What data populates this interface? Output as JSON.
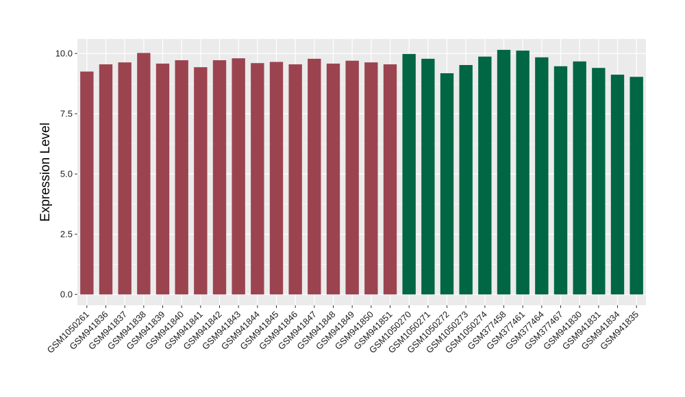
{
  "chart_data": {
    "type": "bar",
    "title": "",
    "xlabel": "",
    "ylabel": "Expression Level",
    "ylim": [
      -0.45,
      10.6
    ],
    "yticks": [
      0.0,
      2.5,
      5.0,
      7.5,
      10.0
    ],
    "ytick_labels": [
      "0.0",
      "2.5",
      "5.0",
      "7.5",
      "10.0"
    ],
    "grid": true,
    "legend": "none",
    "background_color": "#ebebeb",
    "gridline_color": "#ffffff",
    "categories": [
      "GSM1050261",
      "GSM941836",
      "GSM941837",
      "GSM941838",
      "GSM941839",
      "GSM941840",
      "GSM941841",
      "GSM941842",
      "GSM941843",
      "GSM941844",
      "GSM941845",
      "GSM941846",
      "GSM941847",
      "GSM941848",
      "GSM941849",
      "GSM941850",
      "GSM941851",
      "GSM1050270",
      "GSM1050271",
      "GSM1050272",
      "GSM1050273",
      "GSM1050274",
      "GSM377458",
      "GSM377461",
      "GSM377464",
      "GSM377467",
      "GSM941830",
      "GSM941831",
      "GSM941834",
      "GSM941835"
    ],
    "values": [
      9.25,
      9.55,
      9.63,
      10.02,
      9.58,
      9.72,
      9.43,
      9.72,
      9.8,
      9.6,
      9.65,
      9.55,
      9.78,
      9.58,
      9.7,
      9.63,
      9.55,
      9.98,
      9.78,
      9.18,
      9.52,
      9.87,
      10.15,
      10.12,
      9.84,
      9.47,
      9.67,
      9.4,
      9.12,
      9.03
    ],
    "bar_colors": [
      "#9b4450",
      "#9b4450",
      "#9b4450",
      "#9b4450",
      "#9b4450",
      "#9b4450",
      "#9b4450",
      "#9b4450",
      "#9b4450",
      "#9b4450",
      "#9b4450",
      "#9b4450",
      "#9b4450",
      "#9b4450",
      "#9b4450",
      "#9b4450",
      "#9b4450",
      "#006644",
      "#006644",
      "#006644",
      "#006644",
      "#006644",
      "#006644",
      "#006644",
      "#006644",
      "#006644",
      "#006644",
      "#006644",
      "#006644",
      "#006644"
    ]
  }
}
